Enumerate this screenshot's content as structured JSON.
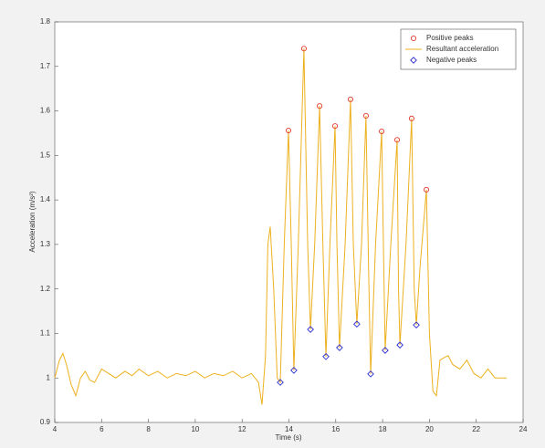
{
  "chart_data": {
    "type": "line",
    "xlabel": "Time (s)",
    "ylabel": "Acceleration (m/s²)",
    "xlim": [
      4,
      24
    ],
    "xticks": [
      4,
      6,
      8,
      10,
      12,
      14,
      16,
      18,
      20,
      22,
      24
    ],
    "ylim": [
      0.9,
      1.8
    ],
    "yticks": [
      0.9,
      1,
      1.1,
      1.2,
      1.3,
      1.4,
      1.5,
      1.6,
      1.7,
      1.8
    ],
    "grid": false,
    "legend": "northeast",
    "series": [
      {
        "name": "Positive peaks",
        "color": "#e03a2f",
        "marker": "circle",
        "x": [
          13.98,
          14.64,
          15.31,
          15.97,
          16.63,
          17.29,
          17.96,
          18.62,
          19.24,
          19.87
        ],
        "values": [
          1.556,
          1.74,
          1.611,
          1.566,
          1.626,
          1.589,
          1.554,
          1.535,
          1.583,
          1.423
        ]
      },
      {
        "name": "Resultant acceleration",
        "color": "#edb120",
        "marker": "line",
        "x": [
          4.0,
          4.2,
          4.35,
          4.5,
          4.7,
          4.9,
          5.1,
          5.3,
          5.5,
          5.7,
          6.0,
          6.3,
          6.6,
          7.0,
          7.3,
          7.6,
          8.0,
          8.4,
          8.8,
          9.2,
          9.6,
          10.0,
          10.4,
          10.8,
          11.2,
          11.6,
          12.0,
          12.4,
          12.7,
          12.85,
          13.0,
          13.1,
          13.2,
          13.35,
          13.5,
          13.63,
          13.8,
          13.98,
          14.1,
          14.21,
          14.4,
          14.64,
          14.8,
          14.92,
          15.1,
          15.31,
          15.45,
          15.58,
          15.75,
          15.97,
          16.05,
          16.16,
          16.4,
          16.63,
          16.75,
          16.9,
          17.1,
          17.29,
          17.4,
          17.49,
          17.7,
          17.96,
          18.05,
          18.11,
          18.35,
          18.62,
          18.68,
          18.74,
          19.0,
          19.24,
          19.35,
          19.44,
          19.6,
          19.87,
          20.0,
          20.15,
          20.3,
          20.45,
          20.6,
          20.8,
          21.0,
          21.3,
          21.6,
          21.9,
          22.2,
          22.5,
          22.8,
          23.1,
          23.3
        ],
        "values": [
          1.0,
          1.04,
          1.055,
          1.03,
          0.985,
          0.96,
          1.0,
          1.015,
          0.995,
          0.99,
          1.02,
          1.01,
          1.0,
          1.015,
          1.005,
          1.02,
          1.005,
          1.015,
          1.0,
          1.01,
          1.005,
          1.015,
          1.0,
          1.01,
          1.005,
          1.015,
          1.0,
          1.01,
          0.99,
          0.94,
          1.05,
          1.3,
          1.34,
          1.2,
          1.0,
          0.99,
          1.3,
          1.556,
          1.3,
          1.017,
          1.3,
          1.74,
          1.3,
          1.109,
          1.3,
          1.611,
          1.3,
          1.048,
          1.3,
          1.566,
          1.3,
          1.068,
          1.3,
          1.626,
          1.3,
          1.121,
          1.3,
          1.589,
          1.25,
          1.009,
          1.3,
          1.554,
          1.25,
          1.062,
          1.3,
          1.535,
          1.2,
          1.074,
          1.3,
          1.583,
          1.2,
          1.119,
          1.25,
          1.423,
          1.1,
          0.97,
          0.96,
          1.04,
          1.045,
          1.05,
          1.03,
          1.02,
          1.04,
          1.01,
          1.0,
          1.02,
          1.0,
          1.0,
          1.0
        ]
      },
      {
        "name": "Negative peaks",
        "color": "#2b2bd0",
        "marker": "diamond",
        "x": [
          13.63,
          14.21,
          14.92,
          15.58,
          16.16,
          16.9,
          17.49,
          18.11,
          18.74,
          19.44
        ],
        "values": [
          0.99,
          1.017,
          1.109,
          1.048,
          1.068,
          1.121,
          1.009,
          1.062,
          1.074,
          1.119
        ]
      }
    ]
  }
}
